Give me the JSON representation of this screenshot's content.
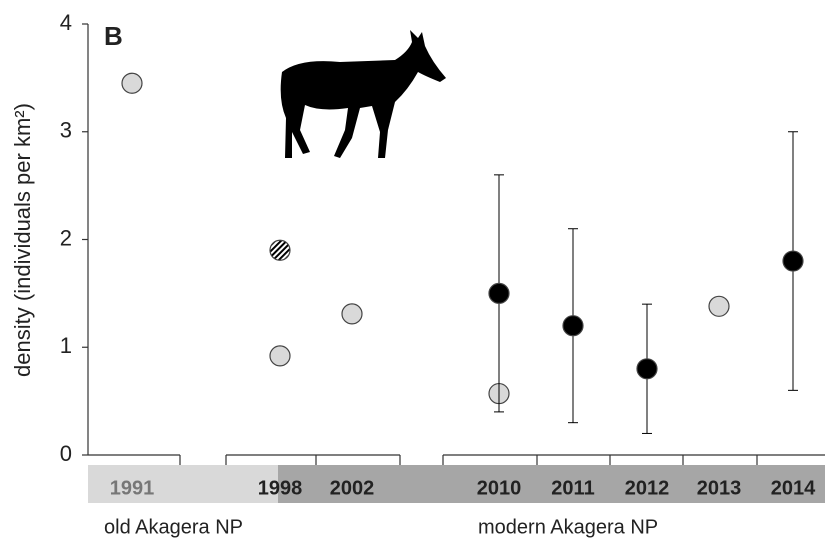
{
  "chart_data": {
    "type": "scatter",
    "panel_label": "B",
    "ylabel": "density (individuals per km²)",
    "categories": [
      "1991",
      "1998",
      "2002",
      "2010",
      "2011",
      "2012",
      "2013",
      "2014"
    ],
    "series": [
      {
        "color": "#d9d9d9",
        "values": [
          3.45,
          0.92,
          1.31,
          0.57,
          null,
          null,
          1.38,
          null
        ]
      },
      {
        "color": "hatched",
        "values": [
          null,
          1.9,
          null,
          null,
          null,
          null,
          null,
          null
        ]
      },
      {
        "color": "#000000",
        "values": [
          null,
          null,
          null,
          1.5,
          1.2,
          0.8,
          null,
          1.8
        ],
        "errors": [
          null,
          null,
          null,
          1.1,
          0.9,
          0.6,
          null,
          1.2
        ]
      }
    ],
    "periods": [
      "old Akagera NP",
      "modern Akagera NP"
    ],
    "ylim": [
      0,
      4
    ],
    "yticks": [
      0,
      1,
      2,
      3,
      4
    ]
  }
}
